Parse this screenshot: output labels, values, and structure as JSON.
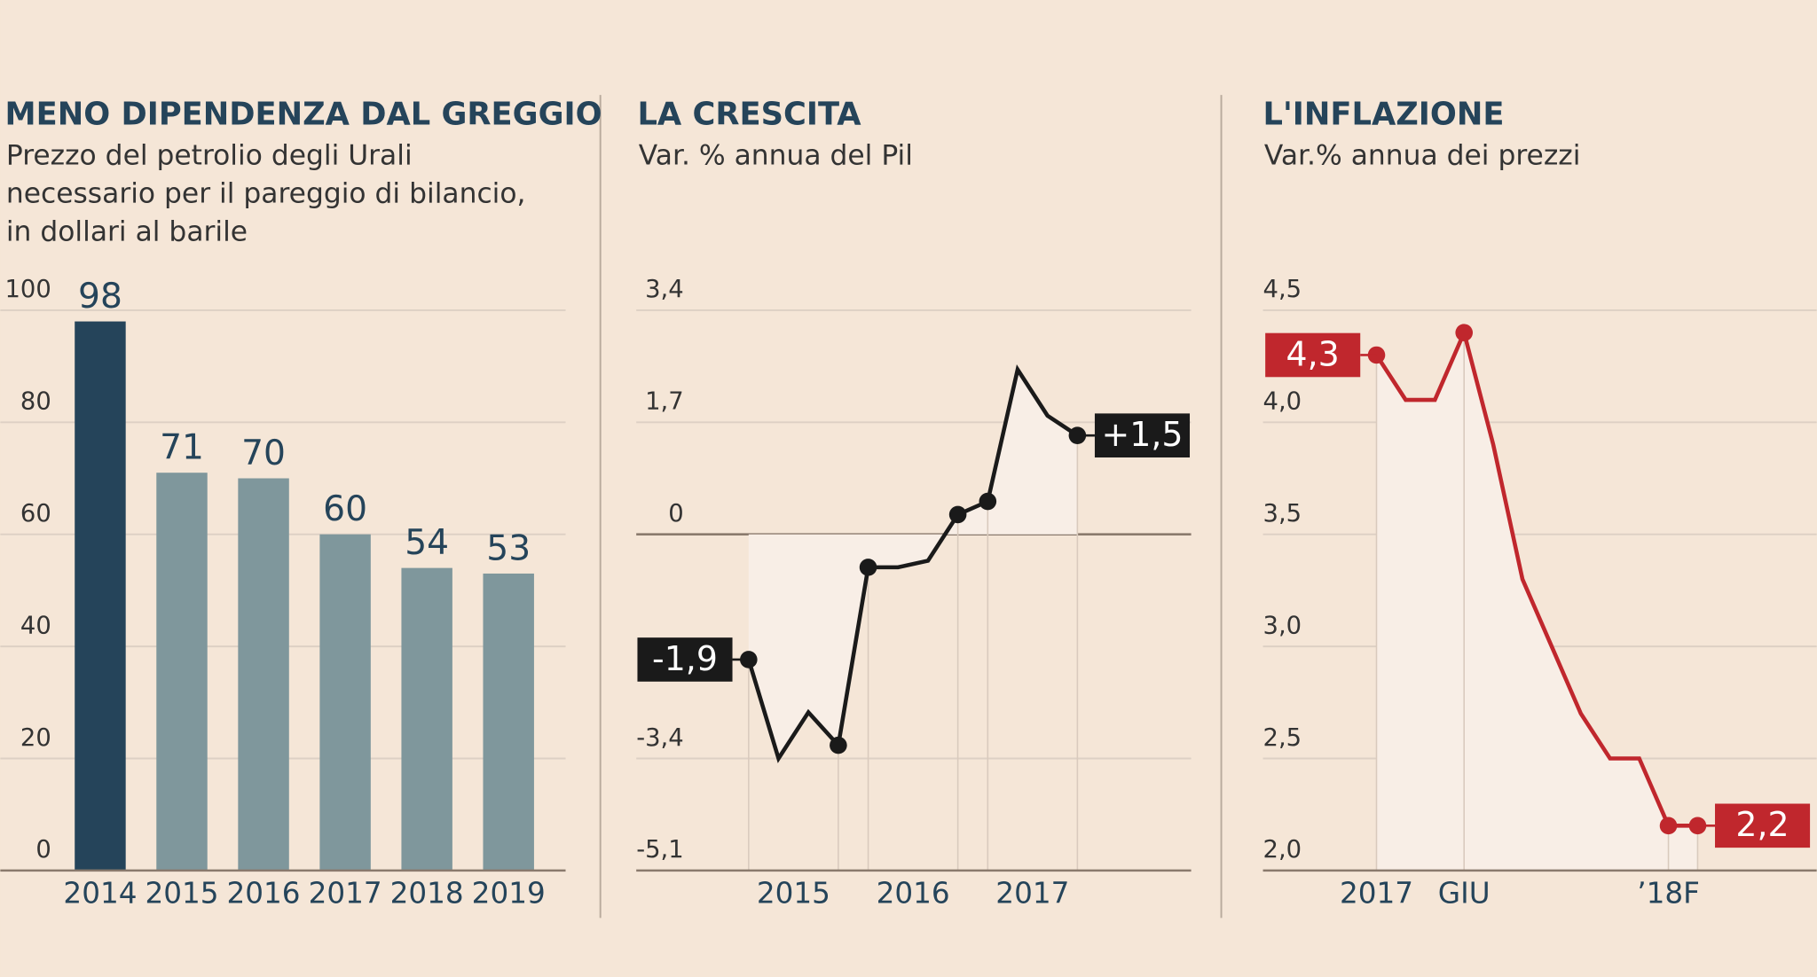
{
  "chart_data": [
    {
      "type": "bar",
      "title": "MENO DIPENDENZA DAL GREGGIO",
      "subtitle": [
        "Prezzo del petrolio degli Urali",
        "necessario per il pareggio di bilancio,",
        "in dollari al barile"
      ],
      "categories": [
        "2014",
        "2015",
        "2016",
        "2017",
        "2018",
        "2019"
      ],
      "values": [
        98,
        71,
        70,
        60,
        54,
        53
      ],
      "colors": [
        "#25445a",
        "#7f979c",
        "#7f979c",
        "#7f979c",
        "#7f979c",
        "#7f979c"
      ],
      "ylim": [
        0,
        100
      ],
      "yticks": [
        0,
        20,
        40,
        60,
        80,
        100
      ],
      "grid": true
    },
    {
      "type": "line",
      "title": "LA CRESCITA",
      "subtitle": [
        "Var. % annua del Pil"
      ],
      "categories": [
        "2015",
        null,
        null,
        null,
        "2016",
        null,
        null,
        null,
        "2017",
        null,
        null,
        null
      ],
      "values": [
        -1.9,
        -3.4,
        -2.7,
        -3.2,
        -0.5,
        -0.5,
        -0.4,
        0.3,
        0.5,
        2.5,
        1.8,
        1.5
      ],
      "value_labels": [
        "-1,9",
        null,
        null,
        null,
        null,
        null,
        null,
        null,
        null,
        null,
        null,
        "+1,5"
      ],
      "color": "#1a1a1a",
      "ylim": [
        -5.1,
        3.4
      ],
      "yticks": [
        {
          "value": -5.1,
          "label": "-5,1"
        },
        {
          "value": -3.4,
          "label": "-3,4"
        },
        0,
        {
          "value": 1.7,
          "label": "1,7"
        },
        {
          "value": 3.4,
          "label": "3,4"
        }
      ],
      "grid": true
    },
    {
      "type": "line",
      "title": "L'INFLAZIONE",
      "subtitle": [
        "Var.% annua dei prezzi"
      ],
      "categories": [
        "2017",
        null,
        null,
        "GIU",
        null,
        null,
        null,
        null,
        null,
        null,
        "’18F",
        null
      ],
      "values": [
        4.3,
        4.1,
        4.1,
        4.4,
        3.9,
        3.3,
        3.0,
        2.7,
        2.5,
        2.5,
        2.2,
        2.2
      ],
      "value_labels": [
        "4,3",
        null,
        null,
        null,
        null,
        null,
        null,
        null,
        null,
        null,
        null,
        "2,2"
      ],
      "color": "#c0272d",
      "ylim": [
        {
          "value": 2.0,
          "label": "2,0"
        },
        4.5
      ],
      "yticks": [
        {
          "value": 2.0,
          "label": "2,0"
        },
        {
          "value": 2.5,
          "label": "2,5"
        },
        {
          "value": 3.0,
          "label": "3,0"
        },
        {
          "value": 3.5,
          "label": "3,5"
        },
        {
          "value": 4.0,
          "label": "4,0"
        },
        {
          "value": 4.5,
          "label": "4,5"
        }
      ],
      "grid": true
    }
  ]
}
